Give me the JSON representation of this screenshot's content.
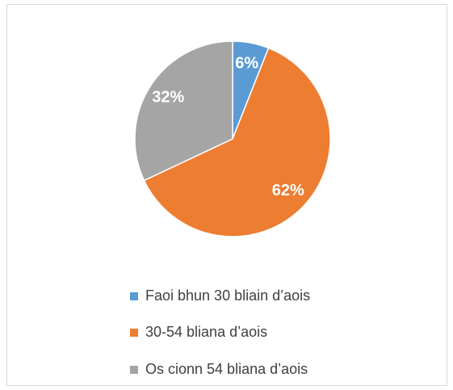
{
  "chart_data": {
    "type": "pie",
    "categories": [
      "Faoi bhun 30 bliain d’aois",
      "30-54 bliana d’aois",
      "Os cionn 54 bliana d’aois"
    ],
    "values": [
      6,
      62,
      32
    ],
    "value_labels": [
      "6%",
      "62%",
      "32%"
    ],
    "colors": [
      "#5b9bd5",
      "#ed7d31",
      "#a5a5a5"
    ],
    "legend": "bottom"
  }
}
